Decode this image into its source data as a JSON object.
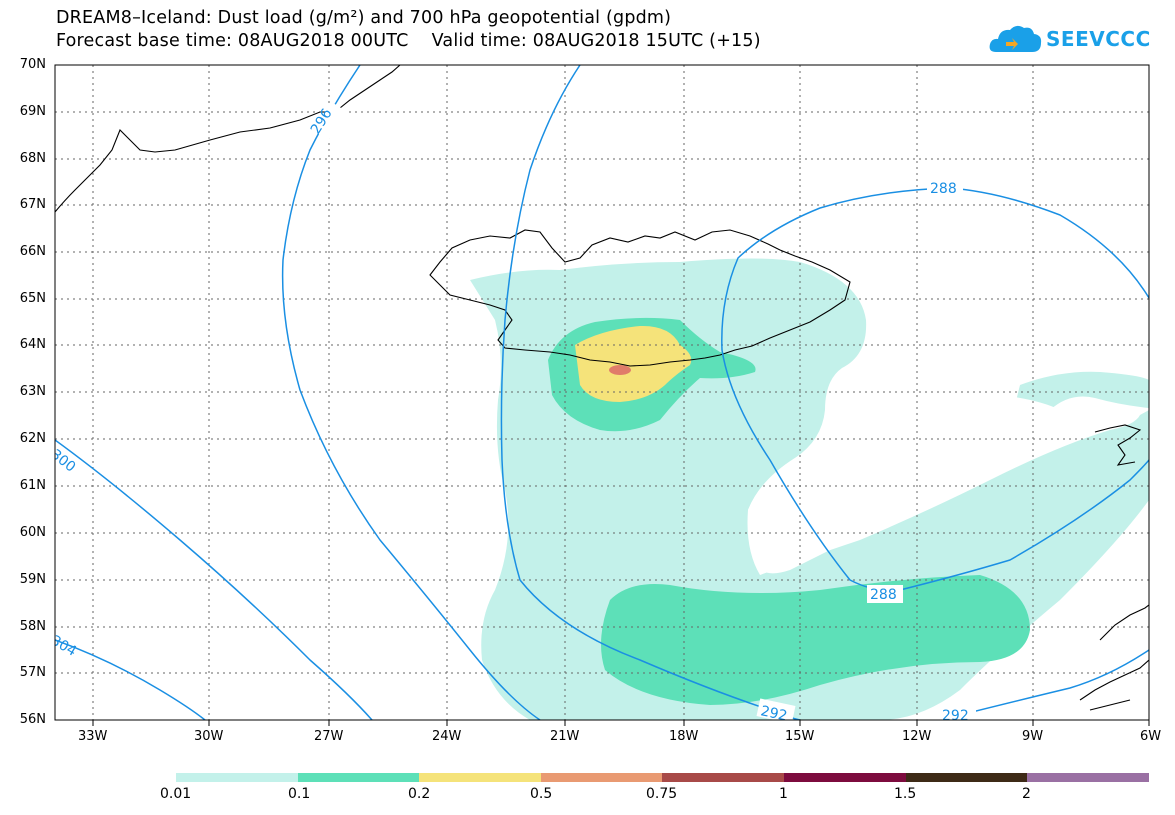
{
  "title_line1": "DREAM8–Iceland: Dust load (g/m²) and 700 hPa geopotential (gpdm)",
  "title_line2": "Forecast base time: 08AUG2018 00UTC    Valid time: 08AUG2018 15UTC (+15)",
  "logo": {
    "text": "SEEVCCC",
    "icon": "cloud-icon"
  },
  "lat_ticks": [
    "70N",
    "69N",
    "68N",
    "67N",
    "66N",
    "65N",
    "64N",
    "63N",
    "62N",
    "61N",
    "60N",
    "59N",
    "58N",
    "57N",
    "56N"
  ],
  "lon_ticks": [
    "33W",
    "30W",
    "27W",
    "24W",
    "21W",
    "18W",
    "15W",
    "12W",
    "9W",
    "6W"
  ],
  "contour_labels": [
    "296",
    "288",
    "288",
    "292",
    "292",
    "300",
    "304"
  ],
  "legend": {
    "labels": [
      "0.01",
      "0.1",
      "0.2",
      "0.5",
      "0.75",
      "1",
      "1.5",
      "2"
    ],
    "colors": [
      "#c3f1ea",
      "#5de0b8",
      "#f5e37a",
      "#e99a72",
      "#a84a48",
      "#7d0b3e",
      "#3e2a17",
      "#9a70a3"
    ]
  },
  "colors": {
    "contour": "#1a8fe3",
    "frame": "#000000"
  }
}
